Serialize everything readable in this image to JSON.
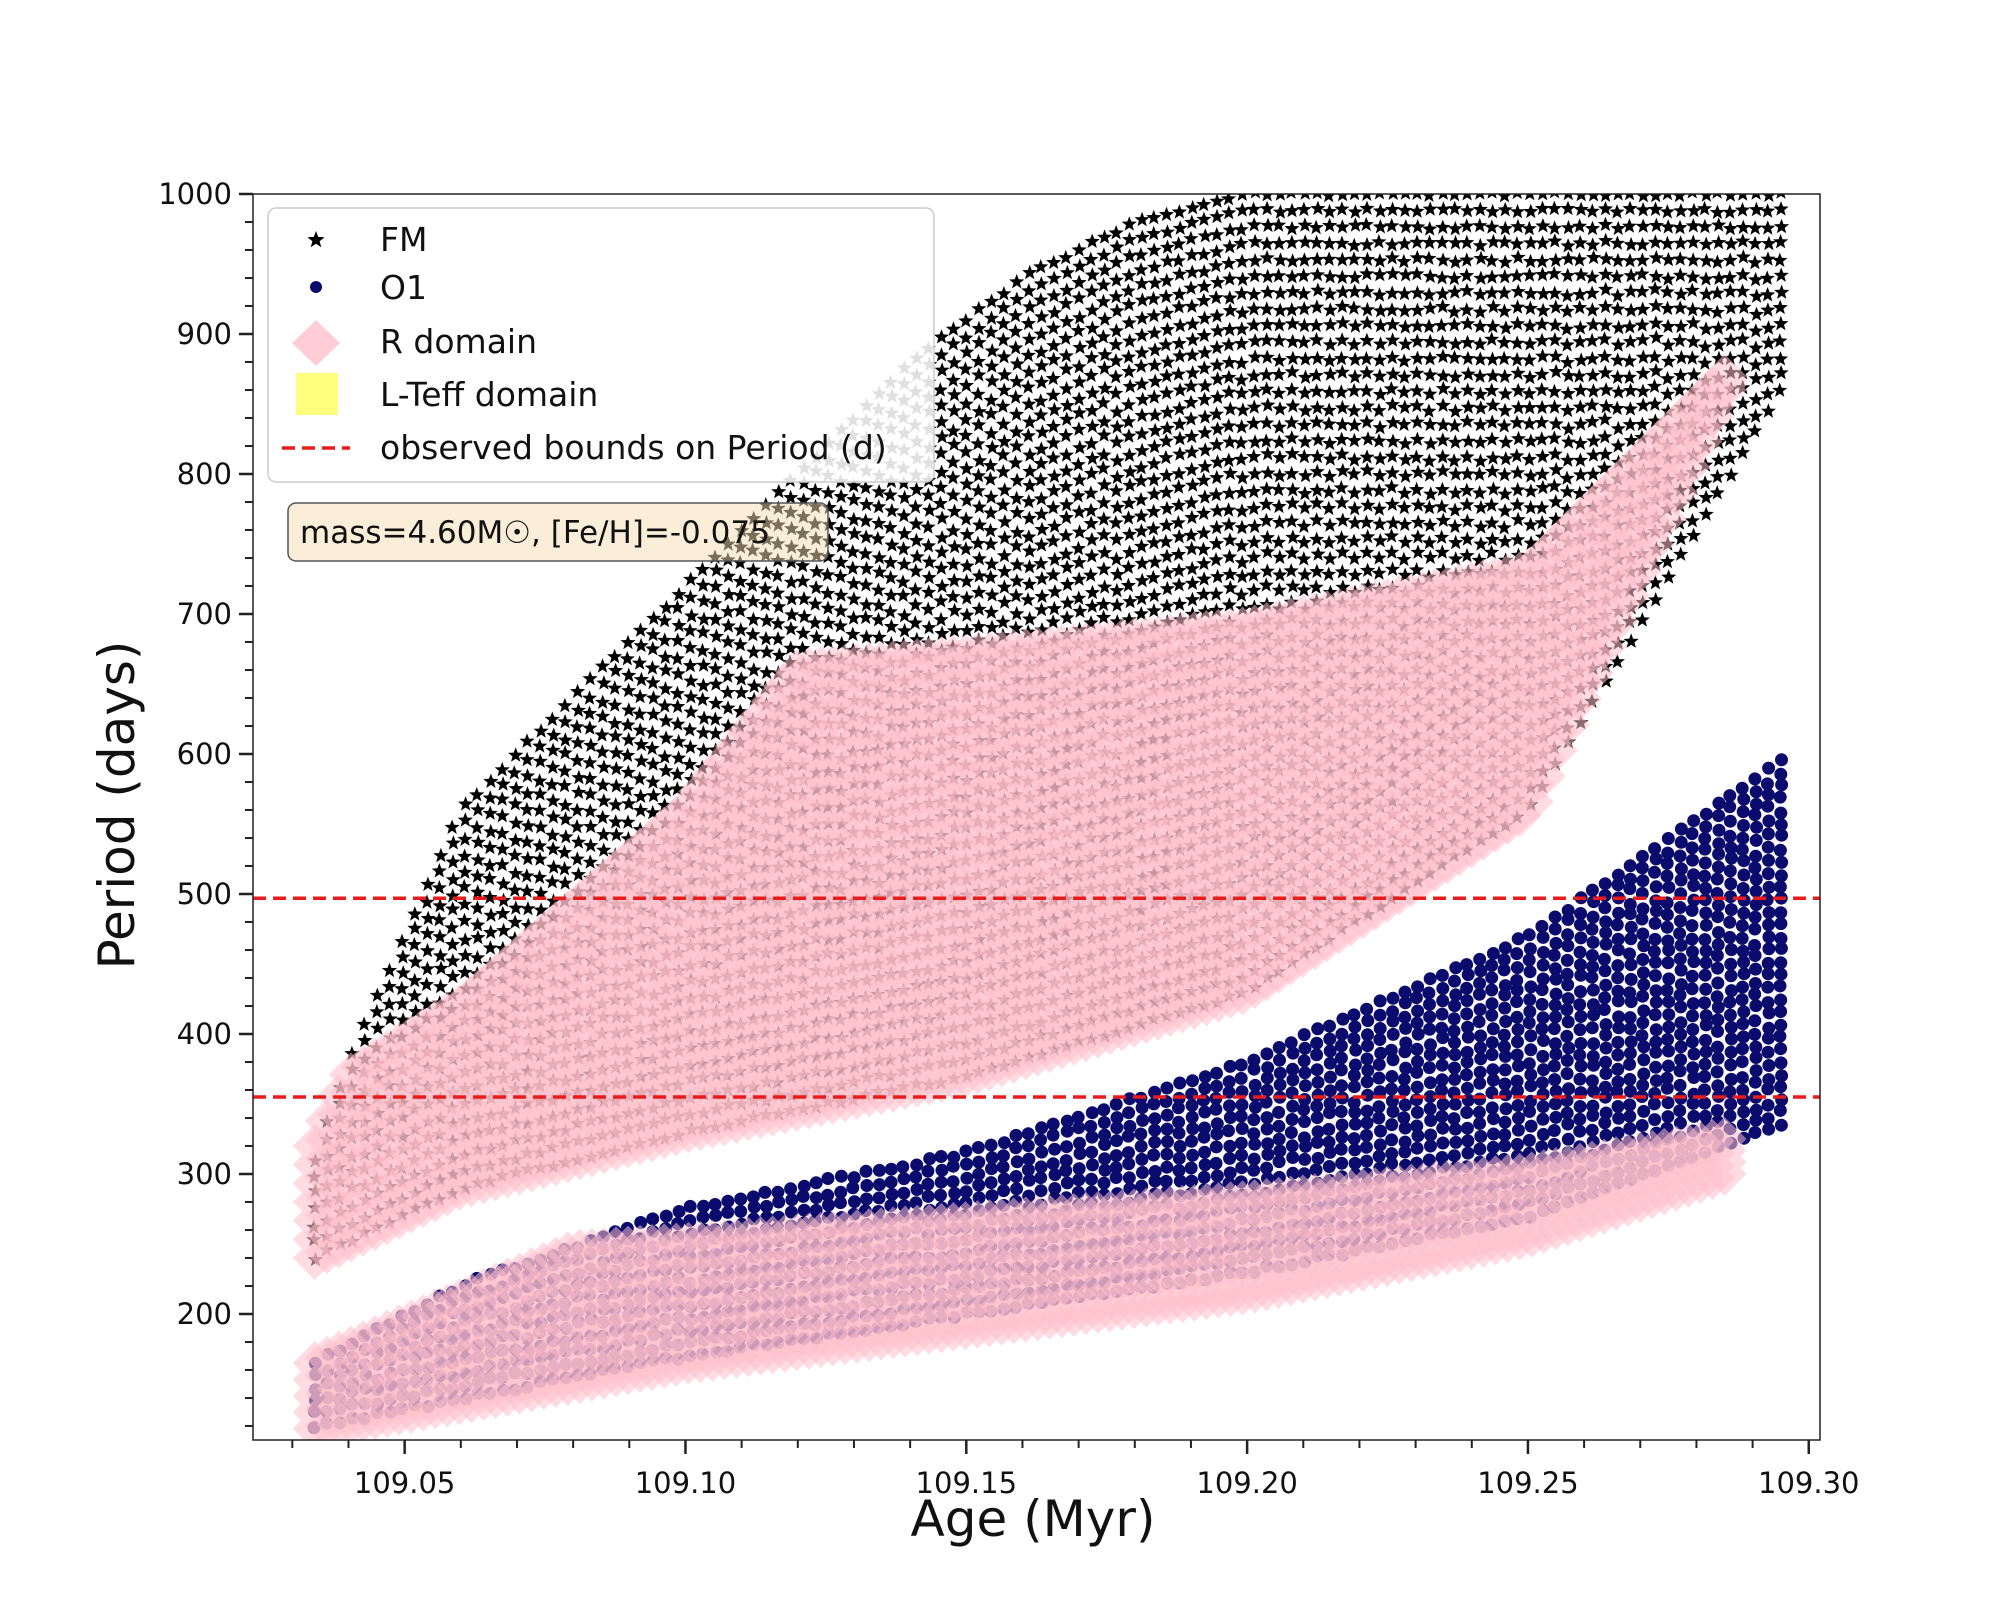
{
  "chart_data": {
    "type": "scatter",
    "title": "",
    "xlabel": "Age (Myr)",
    "ylabel": "Period (days)",
    "xlim": [
      109.023,
      109.302
    ],
    "ylim": [
      110,
      1000
    ],
    "xticks": [
      109.05,
      109.1,
      109.15,
      109.2,
      109.25,
      109.3
    ],
    "xtick_labels": [
      "109.05",
      "109.10",
      "109.15",
      "109.20",
      "109.25",
      "109.30"
    ],
    "yticks": [
      200,
      300,
      400,
      500,
      600,
      700,
      800,
      900,
      1000
    ],
    "ytick_labels": [
      "200",
      "300",
      "400",
      "500",
      "600",
      "700",
      "800",
      "900",
      "1000"
    ],
    "grid": false,
    "legend_position": "top-left",
    "legend": [
      {
        "label": "FM",
        "marker": "star",
        "color": "#000000"
      },
      {
        "label": "O1",
        "marker": "circle",
        "color": "#0b0b6e"
      },
      {
        "label": "R domain",
        "marker": "diamond",
        "color": "#ffc0cb"
      },
      {
        "label": "L-Teff domain",
        "marker": "square",
        "color": "#ffff66"
      },
      {
        "label": "observed bounds on Period (d)",
        "marker": "dashed-line",
        "color": "#e81c1c"
      }
    ],
    "annotation": {
      "text": "mass=4.60M☉, [Fe/H]=-0.075",
      "mass_msun": 4.6,
      "feh": -0.075
    },
    "observed_period_bounds": [
      355,
      497
    ],
    "series": [
      {
        "name": "FM",
        "marker": "star",
        "color": "#000000",
        "age_range": [
          109.034,
          109.295
        ],
        "period_lower_edge": {
          "x": [
            109.034,
            109.06,
            109.1,
            109.15,
            109.2,
            109.25,
            109.295
          ],
          "y": [
            240,
            290,
            330,
            370,
            430,
            560,
            860
          ]
        },
        "period_upper_edge": {
          "x": [
            109.034,
            109.04,
            109.06,
            109.085,
            109.1,
            109.12,
            109.14,
            109.16,
            109.18,
            109.2,
            109.24,
            109.295
          ],
          "y": [
            310,
            380,
            560,
            660,
            720,
            800,
            880,
            940,
            980,
            1000,
            1000,
            1000
          ]
        }
      },
      {
        "name": "O1",
        "marker": "circle",
        "color": "#0b0b6e",
        "age_range": [
          109.034,
          109.295
        ],
        "period_lower_edge": {
          "x": [
            109.034,
            109.1,
            109.15,
            109.2,
            109.25,
            109.295
          ],
          "y": [
            120,
            170,
            200,
            230,
            270,
            335
          ]
        },
        "period_upper_edge": {
          "x": [
            109.034,
            109.06,
            109.1,
            109.15,
            109.2,
            109.25,
            109.295
          ],
          "y": [
            165,
            220,
            275,
            315,
            380,
            470,
            595
          ]
        }
      },
      {
        "name": "R domain",
        "marker": "diamond",
        "color": "#ffc0cb",
        "regions": [
          {
            "mode": "FM",
            "upper_edge": {
              "x": [
                109.034,
                109.04,
                109.06,
                109.08,
                109.1,
                109.12,
                109.15,
                109.2,
                109.25,
                109.285
              ],
              "y": [
                320,
                370,
                420,
                490,
                560,
                660,
                670,
                690,
                730,
                870
              ]
            },
            "lower_edge": {
              "x": [
                109.034,
                109.06,
                109.1,
                109.15,
                109.2,
                109.25,
                109.285
              ],
              "y": [
                240,
                290,
                330,
                370,
                430,
                560,
                860
              ]
            }
          },
          {
            "mode": "O1",
            "upper_edge": {
              "x": [
                109.034,
                109.08,
                109.1,
                109.15,
                109.2,
                109.25,
                109.285
              ],
              "y": [
                165,
                245,
                250,
                265,
                280,
                300,
                325
              ]
            },
            "lower_edge": {
              "x": [
                109.034,
                109.1,
                109.15,
                109.2,
                109.25,
                109.285
              ],
              "y": [
                118,
                165,
                190,
                215,
                255,
                300
              ]
            }
          }
        ]
      }
    ]
  }
}
